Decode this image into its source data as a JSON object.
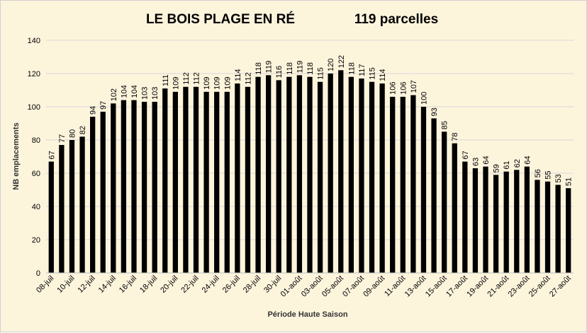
{
  "chart_data": {
    "type": "bar",
    "title": "LE BOIS PLAGE EN RÉ",
    "subtitle": "119 parcelles",
    "xlabel": "Période Haute Saison",
    "ylabel": "NB emplacements",
    "ylim": [
      0,
      140
    ],
    "yticks": [
      0,
      20,
      40,
      60,
      80,
      100,
      120,
      140
    ],
    "grid": true,
    "legend": "none",
    "bar_color": "#000000",
    "categories": [
      "08-juil",
      "09-juil",
      "10-juil",
      "11-juil",
      "12-juil",
      "13-juil",
      "14-juil",
      "15-juil",
      "16-juil",
      "17-juil",
      "18-juil",
      "19-juil",
      "20-juil",
      "21-juil",
      "22-juil",
      "23-juil",
      "24-juil",
      "25-juil",
      "26-juil",
      "27-juil",
      "28-juil",
      "29-juil",
      "30-juil",
      "31-juil",
      "01-août",
      "02-août",
      "03-août",
      "04-août",
      "05-août",
      "06-août",
      "07-août",
      "08-août",
      "09-août",
      "10-août",
      "11-août",
      "12-août",
      "13-août",
      "14-août",
      "15-août",
      "16-août",
      "17-août",
      "18-août",
      "19-août",
      "20-août",
      "21-août",
      "22-août",
      "23-août",
      "24-août",
      "25-août",
      "26-août",
      "27-août"
    ],
    "shown_tick_labels": [
      "08-juil",
      "10-juil",
      "12-juil",
      "14-juil",
      "16-juil",
      "18-juil",
      "20-juil",
      "22-juil",
      "24-juil",
      "26-juil",
      "28-juil",
      "30-juil",
      "01-août",
      "03-août",
      "05-août",
      "07-août",
      "09-août",
      "11-août",
      "13-août",
      "15-août",
      "17-août",
      "19-août",
      "21-août",
      "23-août",
      "25-août",
      "27-août"
    ],
    "values": [
      67,
      77,
      80,
      82,
      94,
      97,
      102,
      104,
      104,
      103,
      103,
      111,
      109,
      112,
      112,
      109,
      109,
      109,
      114,
      112,
      118,
      119,
      116,
      118,
      119,
      118,
      115,
      120,
      122,
      118,
      117,
      115,
      114,
      106,
      106,
      107,
      100,
      93,
      85,
      78,
      67,
      63,
      64,
      59,
      61,
      62,
      64,
      56,
      55,
      53,
      51
    ]
  }
}
